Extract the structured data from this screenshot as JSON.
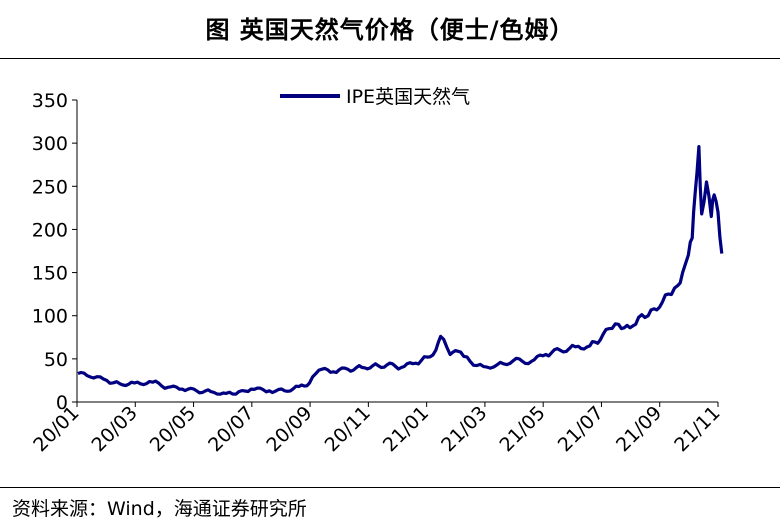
{
  "header": {
    "title": "图  英国天然气价格（便士/色姆）"
  },
  "footer": {
    "source": "资料来源：Wind，海通证券研究所"
  },
  "chart_data": {
    "type": "line",
    "title": "图  英国天然气价格（便士/色姆）",
    "xlabel": "",
    "ylabel": "",
    "ylim": [
      0,
      350
    ],
    "yticks": [
      0,
      50,
      100,
      150,
      200,
      250,
      300,
      350
    ],
    "xticks": [
      "20/01",
      "20/03",
      "20/05",
      "20/07",
      "20/09",
      "20/11",
      "21/01",
      "21/03",
      "21/05",
      "21/07",
      "21/09",
      "21/11"
    ],
    "grid": false,
    "legend": "top-center",
    "color": "#000080",
    "series": [
      {
        "name": "IPE英国天然气",
        "x": [
          "2020-01-02",
          "2020-01-15",
          "2020-02-01",
          "2020-02-15",
          "2020-03-01",
          "2020-03-20",
          "2020-04-05",
          "2020-04-20",
          "2020-05-05",
          "2020-05-20",
          "2020-06-05",
          "2020-06-15",
          "2020-07-01",
          "2020-07-20",
          "2020-08-05",
          "2020-08-20",
          "2020-08-31",
          "2020-09-10",
          "2020-09-25",
          "2020-10-10",
          "2020-10-25",
          "2020-11-05",
          "2020-11-20",
          "2020-12-05",
          "2020-12-20",
          "2021-01-01",
          "2021-01-10",
          "2021-01-15",
          "2021-01-25",
          "2021-02-05",
          "2021-02-15",
          "2021-03-01",
          "2021-03-15",
          "2021-04-01",
          "2021-04-20",
          "2021-05-05",
          "2021-05-20",
          "2021-06-05",
          "2021-06-20",
          "2021-07-01",
          "2021-07-10",
          "2021-07-20",
          "2021-08-01",
          "2021-08-10",
          "2021-08-20",
          "2021-09-01",
          "2021-09-10",
          "2021-09-20",
          "2021-09-25",
          "2021-10-01",
          "2021-10-05",
          "2021-10-08",
          "2021-10-12",
          "2021-10-15",
          "2021-10-20",
          "2021-10-25",
          "2021-10-28",
          "2021-11-01",
          "2021-11-05"
        ],
        "values": [
          33,
          29,
          25,
          21,
          22,
          23,
          17,
          15,
          13,
          12,
          10,
          9,
          15,
          13,
          13,
          18,
          22,
          37,
          35,
          38,
          40,
          42,
          43,
          40,
          45,
          52,
          60,
          76,
          55,
          58,
          47,
          41,
          43,
          48,
          47,
          55,
          60,
          64,
          65,
          72,
          85,
          90,
          86,
          98,
          100,
          110,
          125,
          135,
          150,
          170,
          190,
          240,
          296,
          218,
          255,
          215,
          240,
          220,
          172
        ]
      }
    ]
  }
}
